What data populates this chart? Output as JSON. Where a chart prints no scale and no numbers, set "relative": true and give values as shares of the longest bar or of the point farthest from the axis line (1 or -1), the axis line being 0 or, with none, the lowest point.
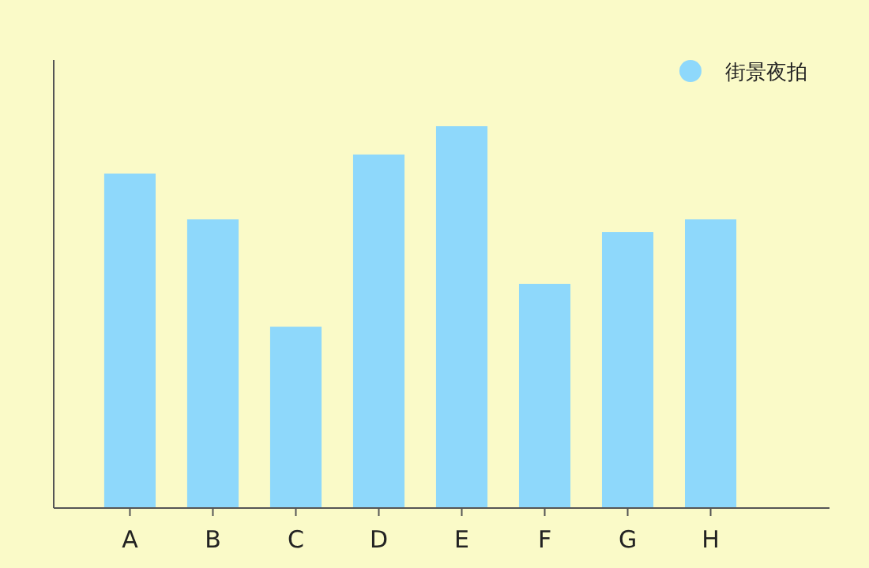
{
  "chart_data": {
    "type": "bar",
    "relative": true,
    "categories": [
      "A",
      "B",
      "C",
      "D",
      "E",
      "F",
      "G",
      "H"
    ],
    "series": [
      {
        "name": "街景夜拍",
        "color": "#8ed8fb",
        "values": [
          0.876,
          0.756,
          0.475,
          0.926,
          1,
          0.587,
          0.723,
          0.756
        ]
      }
    ],
    "legend": "top right"
  }
}
